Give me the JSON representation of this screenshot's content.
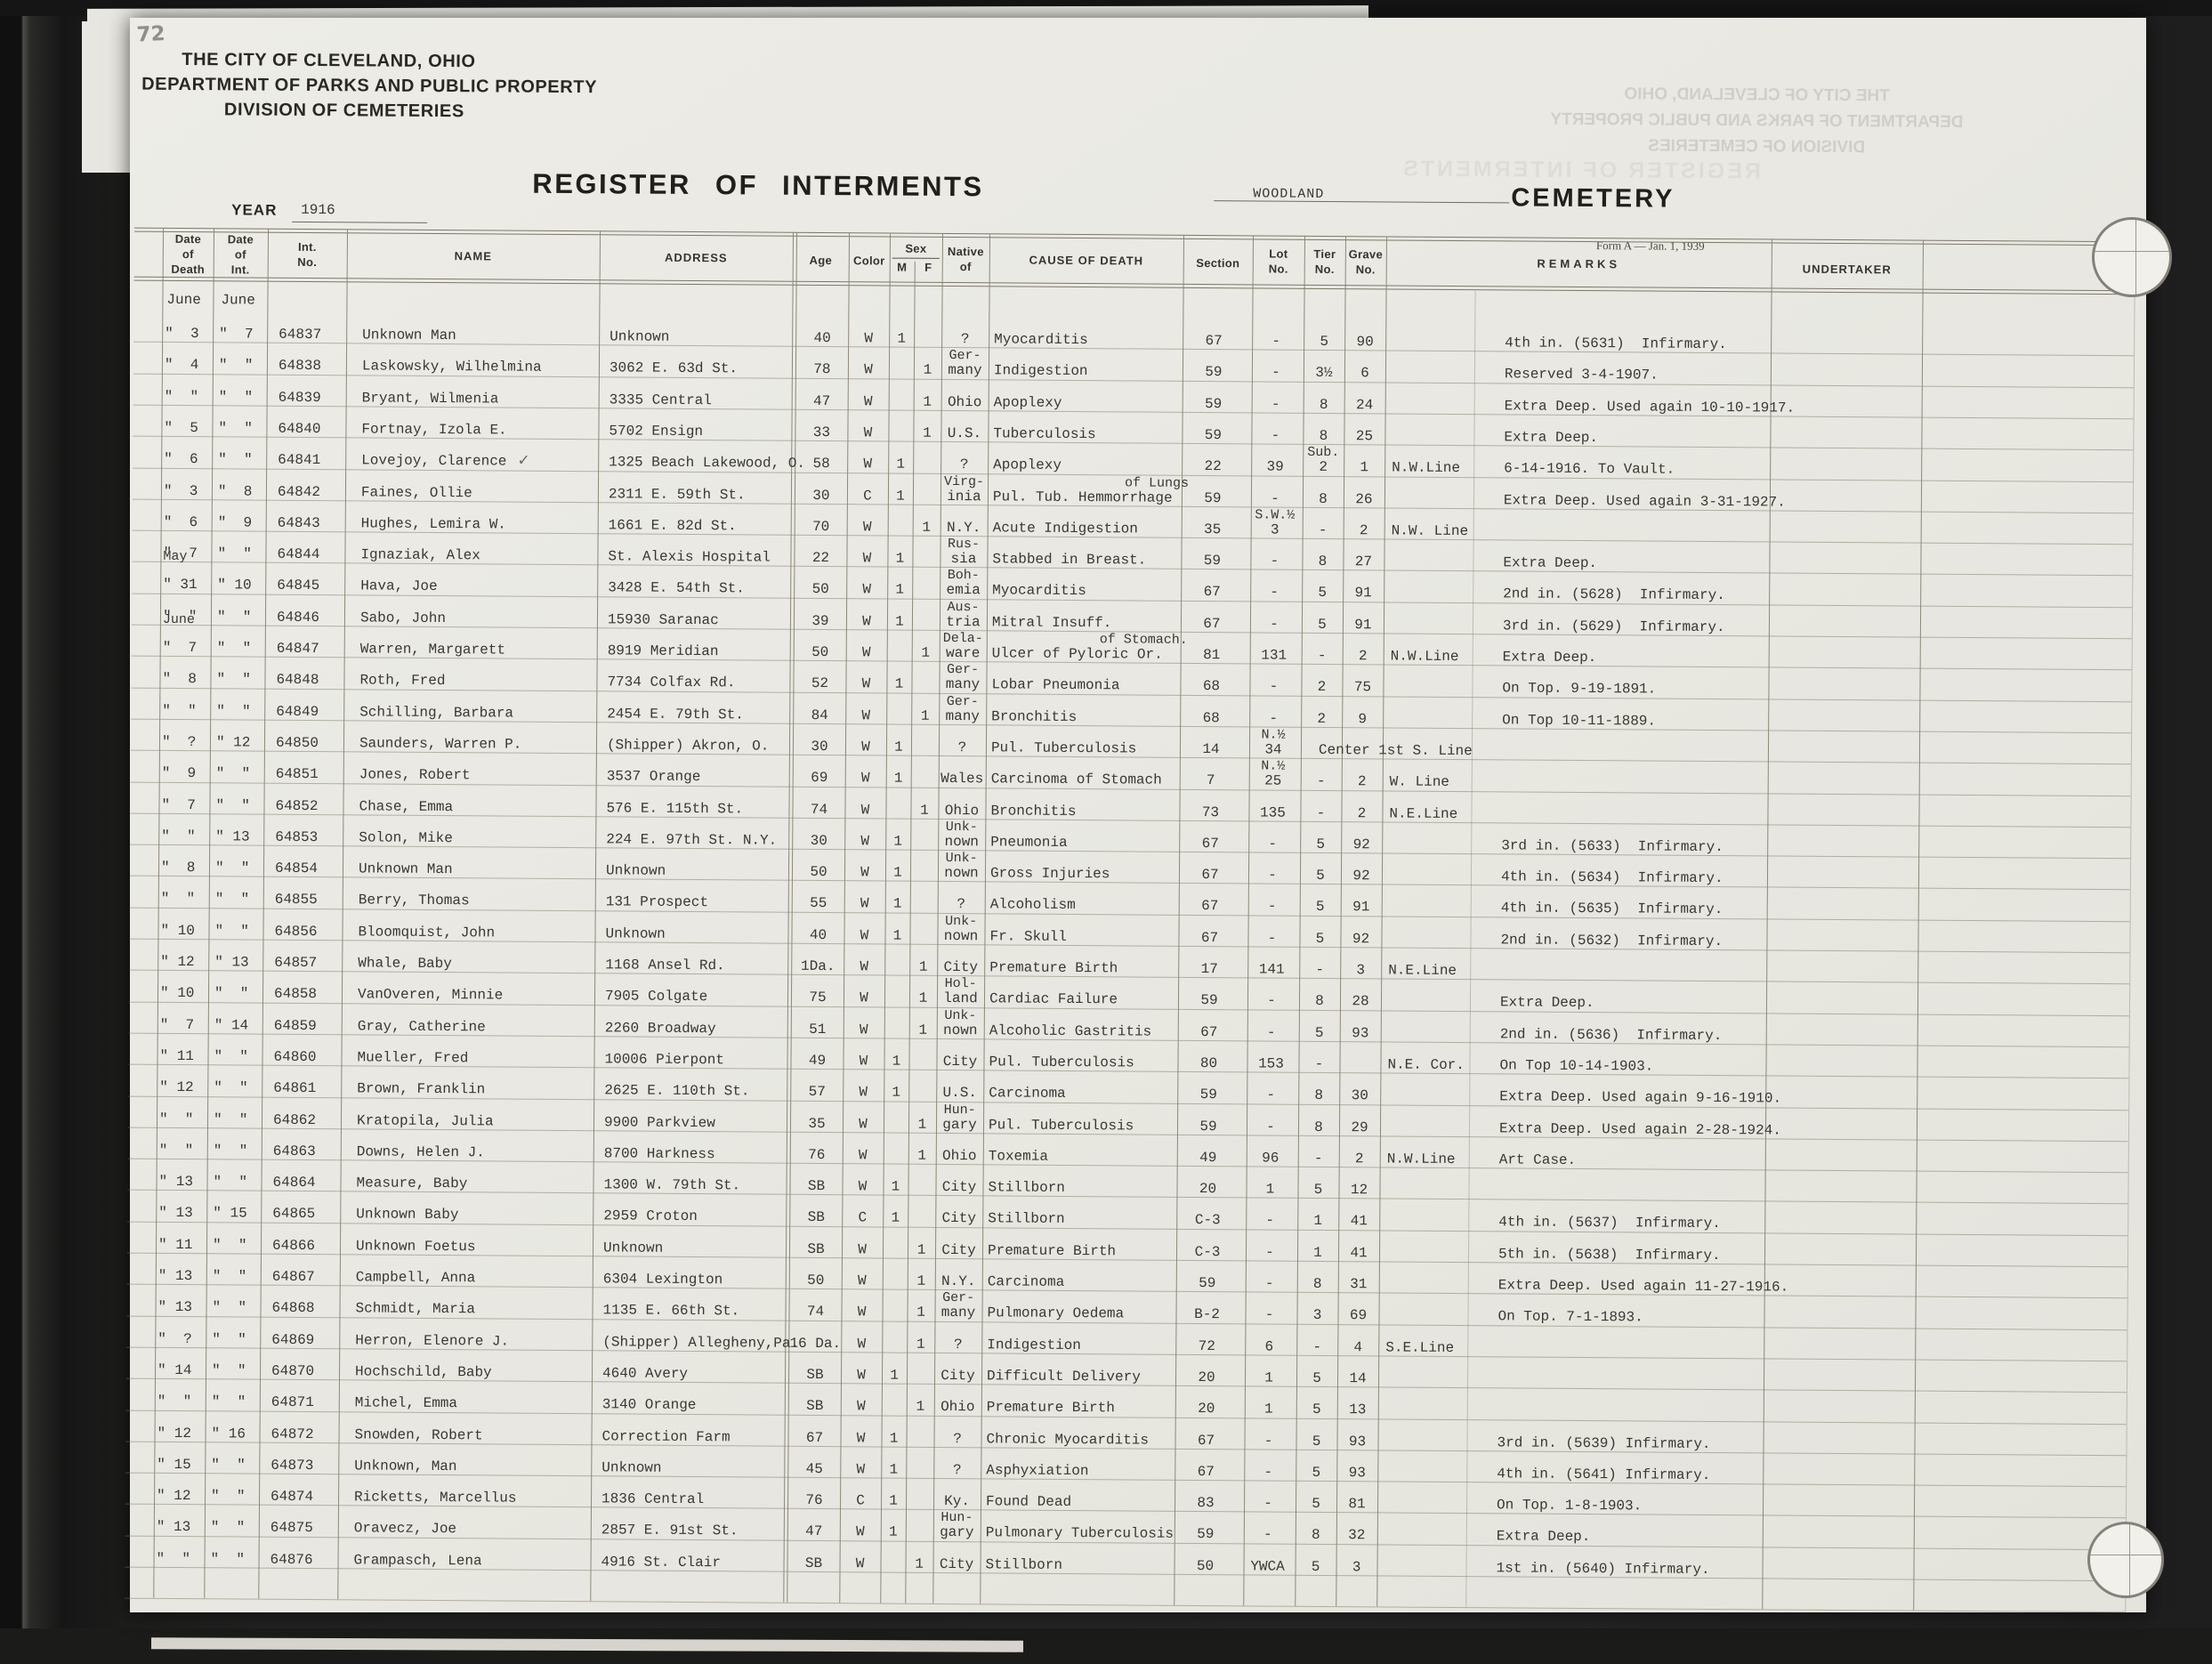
{
  "page_number": "72",
  "header": {
    "org_line1": "THE CITY OF CLEVELAND, OHIO",
    "org_line2": "DEPARTMENT OF PARKS AND PUBLIC PROPERTY",
    "org_line3": "DIVISION OF CEMETERIES",
    "title": "REGISTER OF INTERMENTS",
    "year_label": "YEAR",
    "year_value": "1916",
    "cemetery_name": "WOODLAND",
    "cemetery_label": "CEMETERY",
    "form_note": "Form A — Jan. 1, 1939"
  },
  "ghost": {
    "lines": [
      "THE CITY OF CLEVELAND, OHIO",
      "DEPARTMENT OF PARKS AND PUBLIC PROPERTY",
      "DIVISION OF CEMETERIES"
    ],
    "title": "REGISTER OF INTERMENTS"
  },
  "columns": {
    "date_of_death": [
      "Date",
      "of",
      "Death"
    ],
    "date_of_int": [
      "Date",
      "of",
      "Int."
    ],
    "int_no": [
      "Int.",
      "No."
    ],
    "name": "NAME",
    "address": "ADDRESS",
    "age": "Age",
    "color": "Color",
    "sex": "Sex",
    "sex_m": "M",
    "sex_f": "F",
    "native_of": [
      "Native",
      "of"
    ],
    "cause": "CAUSE OF DEATH",
    "section": "Section",
    "lot": [
      "Lot",
      "No."
    ],
    "tier": [
      "Tier",
      "No."
    ],
    "grave": [
      "Grave",
      "No."
    ],
    "remarks": "REMARKS",
    "undertaker": "UNDERTAKER"
  },
  "month_header": {
    "death": "June",
    "int": "June"
  },
  "rows": [
    {
      "dd": "\"  3",
      "di": "\"  7",
      "no": "64837",
      "name": "Unknown Man",
      "addr": "Unknown",
      "age": "40",
      "color": "W",
      "m": "1",
      "nat": "?",
      "cause": "Myocarditis",
      "sec": "67",
      "lot": "-",
      "tier": "5",
      "grave": "90",
      "rem": "4th in. (5631)  Infirmary."
    },
    {
      "dd": "\"  4",
      "di": "\"  \"",
      "no": "64838",
      "name": "Laskowsky, Wilhelmina",
      "addr": "3062 E. 63d St.",
      "age": "78",
      "color": "W",
      "f": "1",
      "natTop": "Ger-",
      "nat": "many",
      "cause": "Indigestion",
      "sec": "59",
      "lot": "-",
      "tier": "3½",
      "grave": "6",
      "rem": "Reserved 3-4-1907."
    },
    {
      "dd": "\"  \"",
      "di": "\"  \"",
      "no": "64839",
      "name": "Bryant, Wilmenia",
      "addr": "3335 Central",
      "age": "47",
      "color": "W",
      "f": "1",
      "nat": "Ohio",
      "cause": "Apoplexy",
      "sec": "59",
      "lot": "-",
      "tier": "8",
      "grave": "24",
      "rem": "Extra Deep. Used again 10-10-1917."
    },
    {
      "dd": "\"  5",
      "di": "\"  \"",
      "no": "64840",
      "name": "Fortnay, Izola E.",
      "addr": "5702 Ensign",
      "age": "33",
      "color": "W",
      "f": "1",
      "nat": "U.S.",
      "cause": "Tuberculosis",
      "sec": "59",
      "lot": "-",
      "tier": "8",
      "grave": "25",
      "rem": "Extra Deep."
    },
    {
      "dd": "\"  6",
      "di": "\"  \"",
      "no": "64841",
      "name": "Lovejoy, Clarence",
      "mark": "✓",
      "addr": "1325 Beach Lakewood, O.",
      "age": "58",
      "color": "W",
      "m": "1",
      "nat": "?",
      "cause": "Apoplexy",
      "sec": "22",
      "lot": "39",
      "tierTop": "Sub.",
      "tier": "2",
      "grave": "1",
      "loc": "N.W.Line",
      "rem": "6-14-1916. To Vault."
    },
    {
      "dd": "\"  3",
      "di": "\"  8",
      "no": "64842",
      "name": "Faines, Ollie",
      "addr": "2311 E. 59th St.",
      "age": "30",
      "color": "C",
      "m": "1",
      "natTop": "Virg-",
      "nat": "inia",
      "causeTop": "of Lungs",
      "cause": "Pul. Tub. Hemmorrhage",
      "sec": "59",
      "lot": "-",
      "tier": "8",
      "grave": "26",
      "rem": "Extra Deep. Used again 3-31-1927."
    },
    {
      "dd": "\"  6",
      "di": "\"  9",
      "no": "64843",
      "name": "Hughes, Lemira W.",
      "addr": "1661 E. 82d St.",
      "age": "70",
      "color": "W",
      "f": "1",
      "nat": "N.Y.",
      "cause": "Acute Indigestion",
      "sec": "35",
      "lotTop": "S.W.½",
      "lot": "3",
      "tier": "-",
      "grave": "2",
      "loc": "N.W. Line"
    },
    {
      "dd": "\"  7",
      "di": "\"  \"",
      "no": "64844",
      "name": "Ignaziak, Alex",
      "addr": "St. Alexis Hospital",
      "age": "22",
      "color": "W",
      "m": "1",
      "natTop": "Rus-",
      "nat": "sia",
      "cause": "Stabbed in Breast.",
      "sec": "59",
      "lot": "-",
      "tier": "8",
      "grave": "27",
      "rem": "Extra Deep."
    },
    {
      "pre": "May",
      "dd": "\" 31",
      "di": "\" 10",
      "no": "64845",
      "name": "Hava, Joe",
      "addr": "3428 E. 54th St.",
      "age": "50",
      "color": "W",
      "m": "1",
      "natTop": "Boh-",
      "nat": "emia",
      "cause": "Myocarditis",
      "sec": "67",
      "lot": "-",
      "tier": "5",
      "grave": "91",
      "rem": "2nd in. (5628)  Infirmary."
    },
    {
      "dd": "\"  \"",
      "di": "\"  \"",
      "no": "64846",
      "name": "Sabo, John",
      "addr": "15930 Saranac",
      "age": "39",
      "color": "W",
      "m": "1",
      "natTop": "Aus-",
      "nat": "tria",
      "cause": "Mitral Insuff.",
      "sec": "67",
      "lot": "-",
      "tier": "5",
      "grave": "91",
      "rem": "3rd in. (5629)  Infirmary."
    },
    {
      "pre": "June",
      "dd": "\"  7",
      "di": "\"  \"",
      "no": "64847",
      "name": "Warren, Margarett",
      "addr": "8919 Meridian",
      "age": "50",
      "color": "W",
      "f": "1",
      "natTop": "Dela-",
      "nat": "ware",
      "causeTop": "of Stomach.",
      "cause": "Ulcer of Pyloric Or.",
      "sec": "81",
      "lot": "131",
      "tier": "-",
      "grave": "2",
      "loc": "N.W.Line",
      "rem": "Extra Deep."
    },
    {
      "dd": "\"  8",
      "di": "\"  \"",
      "no": "64848",
      "name": "Roth, Fred",
      "addr": "7734 Colfax Rd.",
      "age": "52",
      "color": "W",
      "m": "1",
      "natTop": "Ger-",
      "nat": "many",
      "cause": "Lobar Pneumonia",
      "sec": "68",
      "lot": "-",
      "tier": "2",
      "grave": "75",
      "rem": "On Top. 9-19-1891."
    },
    {
      "dd": "\"  \"",
      "di": "\"  \"",
      "no": "64849",
      "name": "Schilling, Barbara",
      "addr": "2454 E. 79th St.",
      "age": "84",
      "color": "W",
      "f": "1",
      "natTop": "Ger-",
      "nat": "many",
      "cause": "Bronchitis",
      "sec": "68",
      "lot": "-",
      "tier": "2",
      "grave": "9",
      "rem": "On Top 10-11-1889."
    },
    {
      "dd": "\"  ?",
      "di": "\" 12",
      "no": "64850",
      "name": "Saunders, Warren P.",
      "addr": "(Shipper) Akron, O.",
      "age": "30",
      "color": "W",
      "m": "1",
      "nat": "?",
      "cause": "Pul. Tuberculosis",
      "sec": "14",
      "lotTop": "N.½",
      "lot": "34",
      "loc": "Center 1st S. Line"
    },
    {
      "dd": "\"  9",
      "di": "\"  \"",
      "no": "64851",
      "name": "Jones, Robert",
      "addr": "3537 Orange",
      "age": "69",
      "color": "W",
      "m": "1",
      "nat": "Wales",
      "cause": "Carcinoma of Stomach",
      "sec": "7",
      "lotTop": "N.½",
      "lot": "25",
      "tier": "-",
      "grave": "2",
      "loc": "W. Line"
    },
    {
      "dd": "\"  7",
      "di": "\"  \"",
      "no": "64852",
      "name": "Chase, Emma",
      "addr": "576 E. 115th St.",
      "age": "74",
      "color": "W",
      "f": "1",
      "nat": "Ohio",
      "cause": "Bronchitis",
      "sec": "73",
      "lot": "135",
      "tier": "-",
      "grave": "2",
      "loc": "N.E.Line"
    },
    {
      "dd": "\"  \"",
      "di": "\" 13",
      "no": "64853",
      "name": "Solon, Mike",
      "addr": "224 E. 97th St. N.Y.",
      "age": "30",
      "color": "W",
      "m": "1",
      "natTop": "Unk-",
      "nat": "nown",
      "cause": "Pneumonia",
      "sec": "67",
      "lot": "-",
      "tier": "5",
      "grave": "92",
      "rem": "3rd in. (5633)  Infirmary."
    },
    {
      "dd": "\"  8",
      "di": "\"  \"",
      "no": "64854",
      "name": "Unknown Man",
      "addr": "Unknown",
      "age": "50",
      "color": "W",
      "m": "1",
      "natTop": "Unk-",
      "nat": "nown",
      "cause": "Gross Injuries",
      "sec": "67",
      "lot": "-",
      "tier": "5",
      "grave": "92",
      "rem": "4th in. (5634)  Infirmary."
    },
    {
      "dd": "\"  \"",
      "di": "\"  \"",
      "no": "64855",
      "name": "Berry, Thomas",
      "addr": "131 Prospect",
      "age": "55",
      "color": "W",
      "m": "1",
      "nat": "?",
      "cause": "Alcoholism",
      "sec": "67",
      "lot": "-",
      "tier": "5",
      "grave": "91",
      "rem": "4th in. (5635)  Infirmary."
    },
    {
      "dd": "\" 10",
      "di": "\"  \"",
      "no": "64856",
      "name": "Bloomquist, John",
      "addr": "Unknown",
      "age": "40",
      "color": "W",
      "m": "1",
      "natTop": "Unk-",
      "nat": "nown",
      "cause": "Fr. Skull",
      "sec": "67",
      "lot": "-",
      "tier": "5",
      "grave": "92",
      "rem": "2nd in. (5632)  Infirmary."
    },
    {
      "dd": "\" 12",
      "di": "\" 13",
      "no": "64857",
      "name": "Whale, Baby",
      "addr": "1168 Ansel Rd.",
      "age": "1Da.",
      "color": "W",
      "f": "1",
      "nat": "City",
      "cause": "Premature Birth",
      "sec": "17",
      "lot": "141",
      "tier": "-",
      "grave": "3",
      "loc": "N.E.Line"
    },
    {
      "dd": "\" 10",
      "di": "\"  \"",
      "no": "64858",
      "name": "VanOveren, Minnie",
      "addr": "7905 Colgate",
      "age": "75",
      "color": "W",
      "f": "1",
      "natTop": "Hol-",
      "nat": "land",
      "cause": "Cardiac Failure",
      "sec": "59",
      "lot": "-",
      "tier": "8",
      "grave": "28",
      "rem": "Extra Deep."
    },
    {
      "dd": "\"  7",
      "di": "\" 14",
      "no": "64859",
      "name": "Gray, Catherine",
      "addr": "2260 Broadway",
      "age": "51",
      "color": "W",
      "f": "1",
      "natTop": "Unk-",
      "nat": "nown",
      "cause": "Alcoholic Gastritis",
      "sec": "67",
      "lot": "-",
      "tier": "5",
      "grave": "93",
      "rem": "2nd in. (5636)  Infirmary."
    },
    {
      "dd": "\" 11",
      "di": "\"  \"",
      "no": "64860",
      "name": "Mueller, Fred",
      "addr": "10006 Pierpont",
      "age": "49",
      "color": "W",
      "m": "1",
      "nat": "City",
      "cause": "Pul. Tuberculosis",
      "sec": "80",
      "lot": "153",
      "tier": "-",
      "loc": "N.E. Cor.",
      "rem": "On Top 10-14-1903."
    },
    {
      "dd": "\" 12",
      "di": "\"  \"",
      "no": "64861",
      "name": "Brown, Franklin",
      "addr": "2625 E. 110th St.",
      "age": "57",
      "color": "W",
      "m": "1",
      "nat": "U.S.",
      "cause": "Carcinoma",
      "sec": "59",
      "lot": "-",
      "tier": "8",
      "grave": "30",
      "rem": "Extra Deep. Used again 9-16-1910."
    },
    {
      "dd": "\"  \"",
      "di": "\"  \"",
      "no": "64862",
      "name": "Kratopila, Julia",
      "addr": "9900 Parkview",
      "age": "35",
      "color": "W",
      "f": "1",
      "natTop": "Hun-",
      "nat": "gary",
      "cause": "Pul. Tuberculosis",
      "sec": "59",
      "lot": "-",
      "tier": "8",
      "grave": "29",
      "rem": "Extra Deep. Used again 2-28-1924."
    },
    {
      "dd": "\"  \"",
      "di": "\"  \"",
      "no": "64863",
      "name": "Downs, Helen J.",
      "addr": "8700 Harkness",
      "age": "76",
      "color": "W",
      "f": "1",
      "nat": "Ohio",
      "cause": "Toxemia",
      "sec": "49",
      "lot": "96",
      "tier": "-",
      "grave": "2",
      "loc": "N.W.Line",
      "rem": "Art Case."
    },
    {
      "dd": "\" 13",
      "di": "\"  \"",
      "no": "64864",
      "name": "Measure, Baby",
      "addr": "1300 W. 79th St.",
      "age": "SB",
      "color": "W",
      "m": "1",
      "nat": "City",
      "cause": "Stillborn",
      "sec": "20",
      "lot": "1",
      "tier": "5",
      "grave": "12"
    },
    {
      "dd": "\" 13",
      "di": "\" 15",
      "no": "64865",
      "name": "Unknown Baby",
      "addr": "2959 Croton",
      "age": "SB",
      "color": "C",
      "m": "1",
      "nat": "City",
      "cause": "Stillborn",
      "sec": "C-3",
      "lot": "-",
      "tier": "1",
      "grave": "41",
      "rem": "4th in. (5637)  Infirmary."
    },
    {
      "dd": "\" 11",
      "di": "\"  \"",
      "no": "64866",
      "name": "Unknown Foetus",
      "addr": "Unknown",
      "age": "SB",
      "color": "W",
      "f": "1",
      "nat": "City",
      "cause": "Premature Birth",
      "sec": "C-3",
      "lot": "-",
      "tier": "1",
      "grave": "41",
      "rem": "5th in. (5638)  Infirmary."
    },
    {
      "dd": "\" 13",
      "di": "\"  \"",
      "no": "64867",
      "name": "Campbell, Anna",
      "addr": "6304 Lexington",
      "age": "50",
      "color": "W",
      "f": "1",
      "nat": "N.Y.",
      "cause": "Carcinoma",
      "sec": "59",
      "lot": "-",
      "tier": "8",
      "grave": "31",
      "rem": "Extra Deep. Used again 11-27-1916."
    },
    {
      "dd": "\" 13",
      "di": "\"  \"",
      "no": "64868",
      "name": "Schmidt, Maria",
      "addr": "1135 E. 66th St.",
      "age": "74",
      "color": "W",
      "f": "1",
      "natTop": "Ger-",
      "nat": "many",
      "cause": "Pulmonary Oedema",
      "sec": "B-2",
      "lot": "-",
      "tier": "3",
      "grave": "69",
      "rem": "On Top. 7-1-1893."
    },
    {
      "dd": "\"  ?",
      "di": "\"  \"",
      "no": "64869",
      "name": "Herron, Elenore J.",
      "addr": "(Shipper) Allegheny,Pa.",
      "age": "16 Da.",
      "color": "W",
      "f": "1",
      "nat": "?",
      "cause": "Indigestion",
      "sec": "72",
      "lot": "6",
      "tier": "-",
      "grave": "4",
      "loc": "S.E.Line"
    },
    {
      "dd": "\" 14",
      "di": "\"  \"",
      "no": "64870",
      "name": "Hochschild, Baby",
      "addr": "4640 Avery",
      "age": "SB",
      "color": "W",
      "m": "1",
      "nat": "City",
      "cause": "Difficult Delivery",
      "sec": "20",
      "lot": "1",
      "tier": "5",
      "grave": "14"
    },
    {
      "dd": "\"  \"",
      "di": "\"  \"",
      "no": "64871",
      "name": "Michel, Emma",
      "addr": "3140 Orange",
      "age": "SB",
      "color": "W",
      "f": "1",
      "nat": "Ohio",
      "cause": "Premature Birth",
      "sec": "20",
      "lot": "1",
      "tier": "5",
      "grave": "13"
    },
    {
      "dd": "\" 12",
      "di": "\" 16",
      "no": "64872",
      "name": "Snowden, Robert",
      "addr": "Correction Farm",
      "age": "67",
      "color": "W",
      "m": "1",
      "nat": "?",
      "cause": "Chronic Myocarditis",
      "sec": "67",
      "lot": "-",
      "tier": "5",
      "grave": "93",
      "rem": "3rd in. (5639) Infirmary."
    },
    {
      "dd": "\" 15",
      "di": "\"  \"",
      "no": "64873",
      "name": "Unknown, Man",
      "addr": "Unknown",
      "age": "45",
      "color": "W",
      "m": "1",
      "nat": "?",
      "cause": "Asphyxiation",
      "sec": "67",
      "lot": "-",
      "tier": "5",
      "grave": "93",
      "rem": "4th in. (5641) Infirmary."
    },
    {
      "dd": "\" 12",
      "di": "\"  \"",
      "no": "64874",
      "name": "Ricketts, Marcellus",
      "addr": "1836 Central",
      "age": "76",
      "color": "C",
      "m": "1",
      "nat": "Ky.",
      "cause": "Found Dead",
      "sec": "83",
      "lot": "-",
      "tier": "5",
      "grave": "81",
      "rem": "On Top. 1-8-1903."
    },
    {
      "dd": "\" 13",
      "di": "\"  \"",
      "no": "64875",
      "name": "Oravecz, Joe",
      "addr": "2857 E. 91st St.",
      "age": "47",
      "color": "W",
      "m": "1",
      "natTop": "Hun-",
      "nat": "gary",
      "cause": "Pulmonary Tuberculosis",
      "sec": "59",
      "lot": "-",
      "tier": "8",
      "grave": "32",
      "rem": "Extra Deep."
    },
    {
      "dd": "\"  \"",
      "di": "\"  \"",
      "no": "64876",
      "name": "Grampasch, Lena",
      "addr": "4916 St. Clair",
      "age": "SB",
      "color": "W",
      "f": "1",
      "nat": "City",
      "cause": "Stillborn",
      "sec": "50",
      "lot": "YWCA",
      "tier": "5",
      "grave": "3",
      "rem": "1st in. (5640) Infirmary."
    }
  ]
}
